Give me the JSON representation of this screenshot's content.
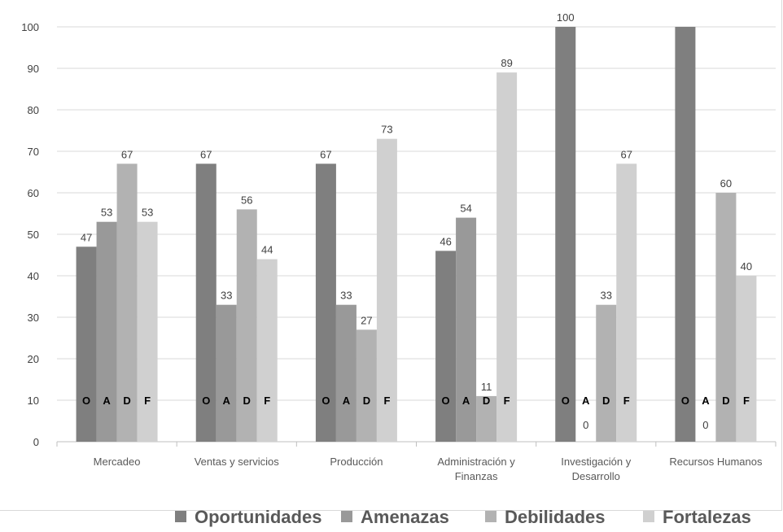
{
  "chart_data": {
    "type": "bar",
    "categories": [
      [
        "Mercadeo"
      ],
      [
        "Ventas y servicios"
      ],
      [
        "Producción"
      ],
      [
        "Administración y",
        "Finanzas"
      ],
      [
        "Investigación y",
        "Desarrollo"
      ],
      [
        "Recursos Humanos"
      ]
    ],
    "series": [
      {
        "name": "Oportunidades",
        "letter": "O",
        "color": "#7f7f7f",
        "values": [
          47,
          67,
          67,
          46,
          100,
          100
        ]
      },
      {
        "name": "Amenazas",
        "letter": "A",
        "color": "#999999",
        "values": [
          53,
          33,
          33,
          54,
          0,
          0
        ]
      },
      {
        "name": "Debilidades",
        "letter": "D",
        "color": "#b2b2b2",
        "values": [
          67,
          56,
          27,
          11,
          33,
          60
        ]
      },
      {
        "name": "Fortalezas",
        "letter": "F",
        "color": "#d0d0d0",
        "values": [
          53,
          44,
          73,
          89,
          67,
          40
        ]
      }
    ],
    "hidden_labels": [
      [
        5,
        0
      ]
    ],
    "ylim": [
      0,
      100
    ],
    "yticks": [
      0,
      10,
      20,
      30,
      40,
      50,
      60,
      70,
      80,
      90,
      100
    ],
    "grid": true,
    "legend": "bottom",
    "title": "",
    "xlabel": "",
    "ylabel": ""
  }
}
